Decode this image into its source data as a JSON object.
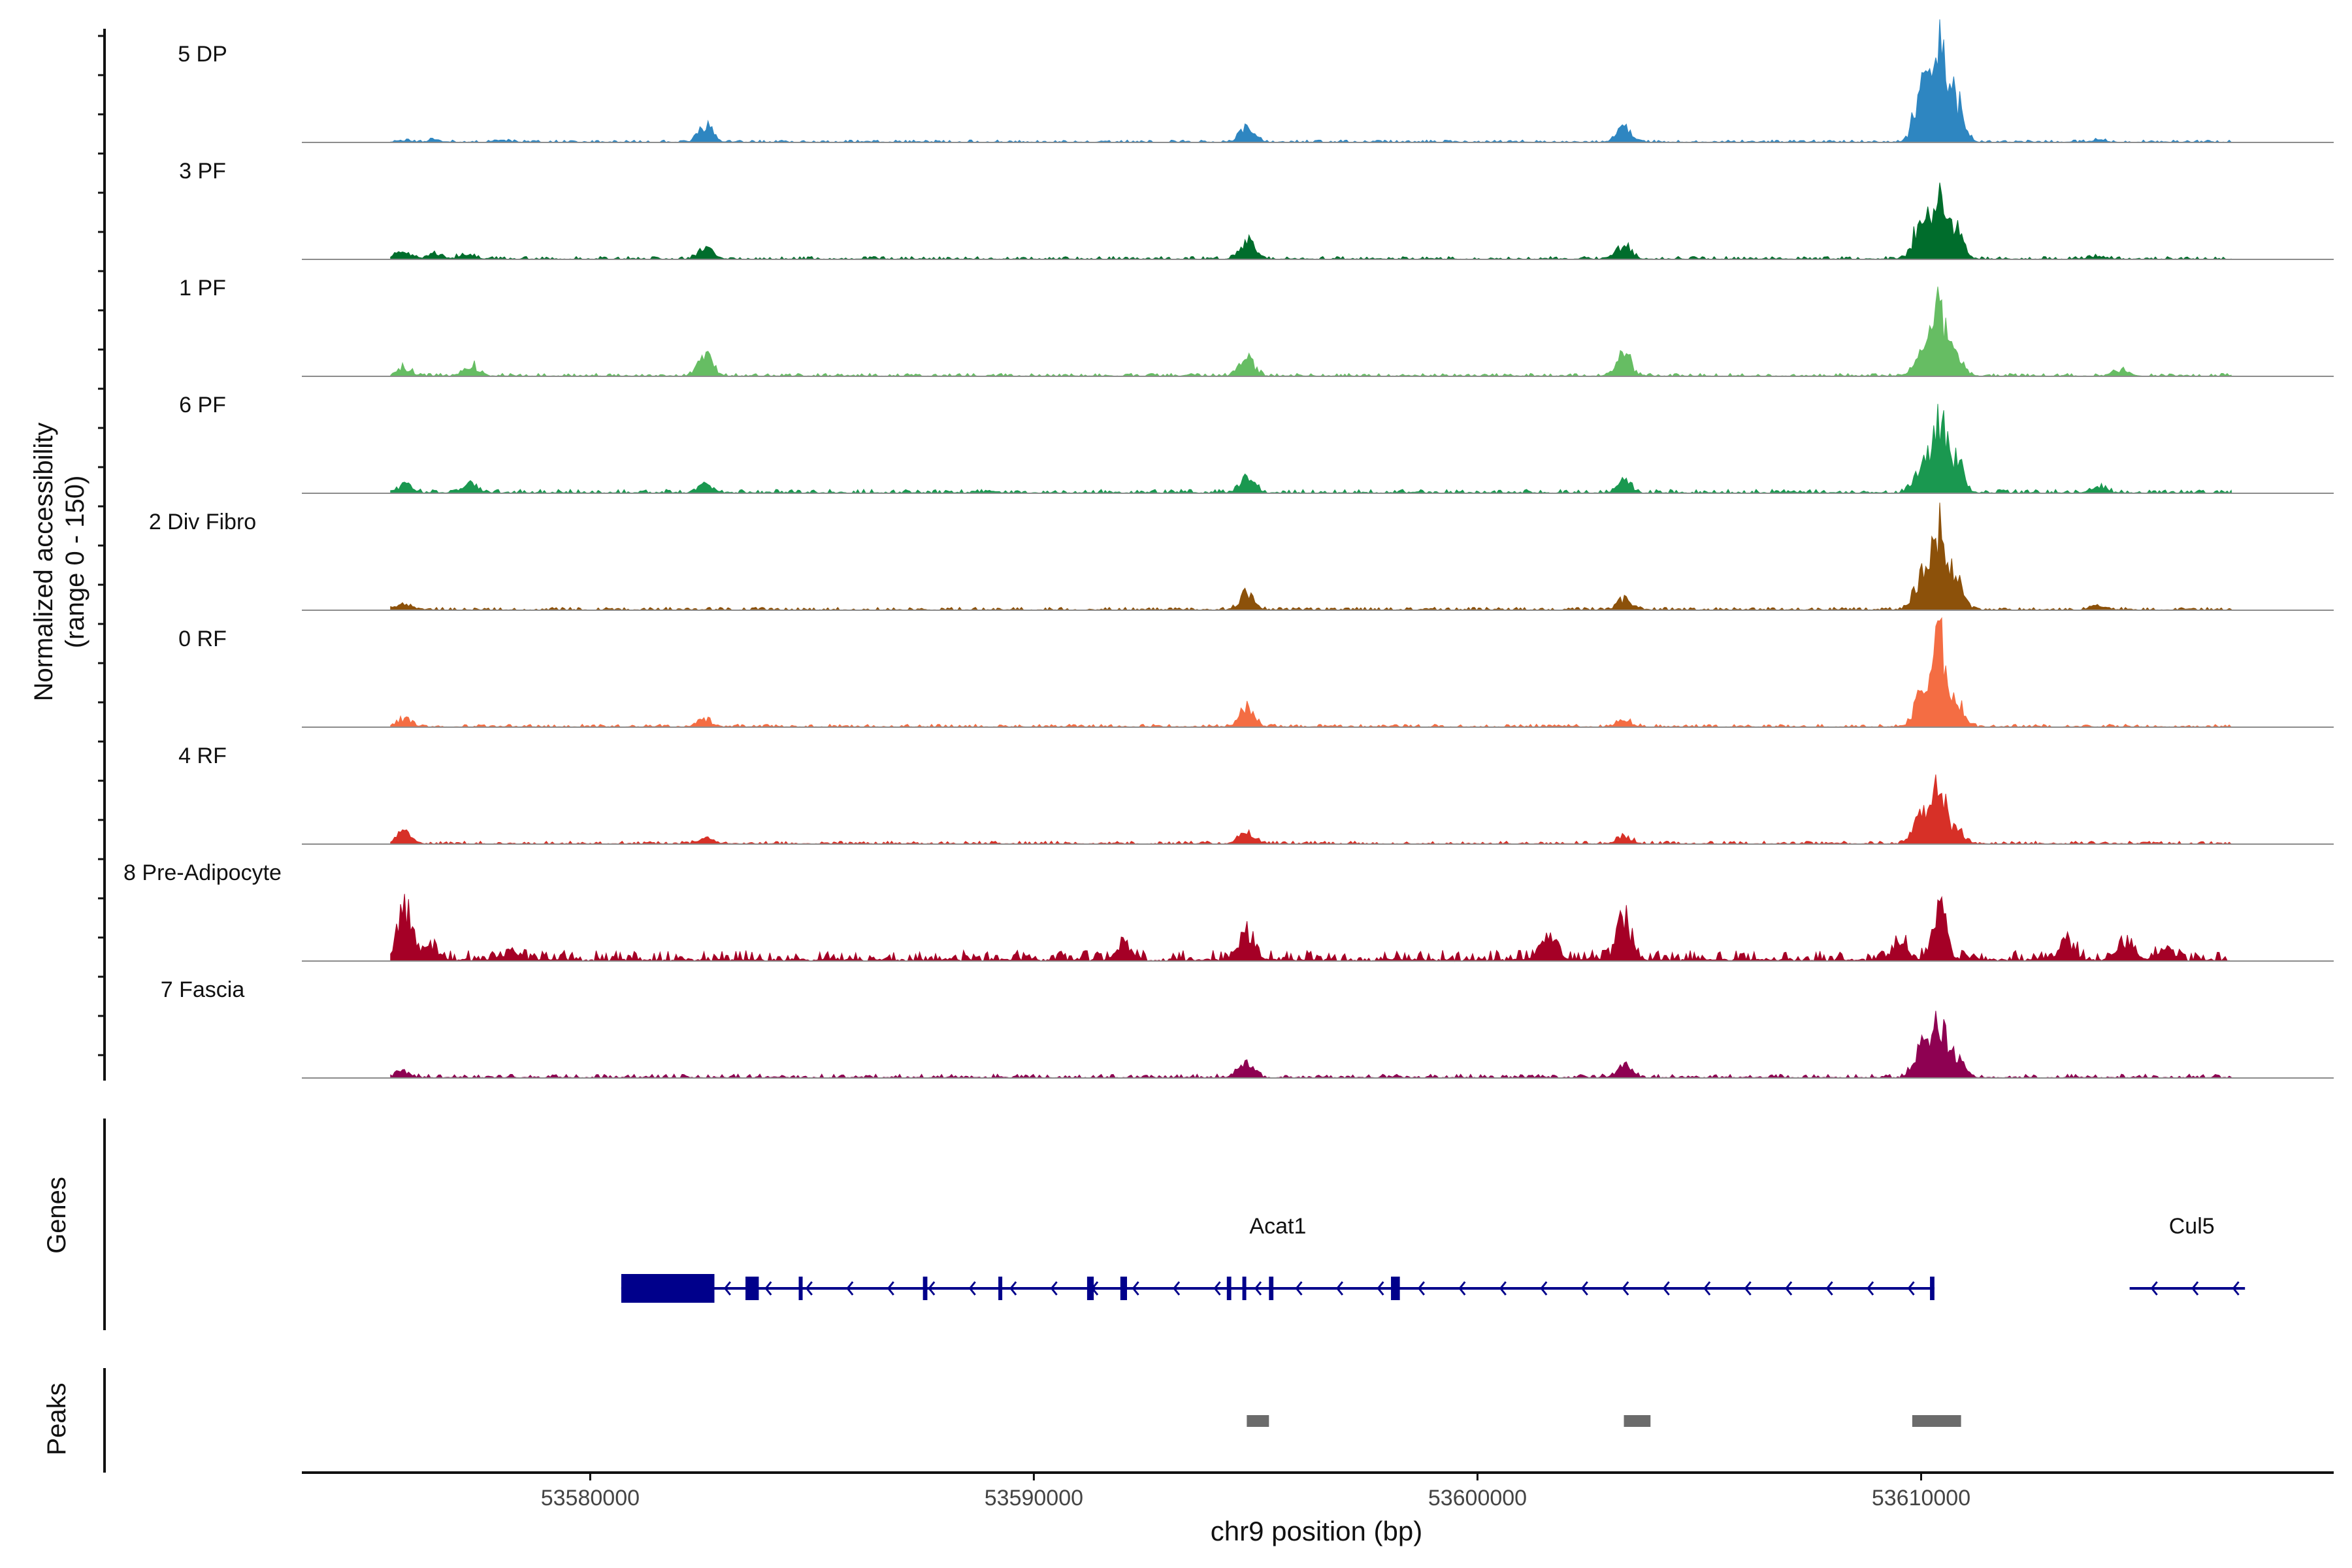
{
  "chart_data": {
    "type": "coverage-track",
    "y_axis_title": [
      "Normalized accessibility",
      "(range 0 - 150)"
    ],
    "y_range": [
      0,
      150
    ],
    "x_label": "chr9 position (bp)",
    "x_range": [
      53573500,
      53619300
    ],
    "x_ticks": [
      53580000,
      53590000,
      53600000,
      53610000
    ],
    "x_tick_labels": [
      "53580000",
      "53590000",
      "53600000",
      "53610000"
    ],
    "baseline_color": "#8c8c8c",
    "tracks": [
      {
        "name": "5 DP",
        "color": "#2e86c1",
        "noise": 2.5,
        "peaks": [
          [
            53575800,
            2
          ],
          [
            53576500,
            2
          ],
          [
            53578000,
            2
          ],
          [
            53582600,
            16
          ],
          [
            53594800,
            15
          ],
          [
            53603300,
            14
          ],
          [
            53610000,
            50
          ],
          [
            53610400,
            88
          ],
          [
            53610800,
            40
          ],
          [
            53614000,
            2
          ]
        ]
      },
      {
        "name": "3 PF",
        "color": "#006d2c",
        "noise": 3,
        "peaks": [
          [
            53575800,
            9
          ],
          [
            53576500,
            5
          ],
          [
            53577200,
            5
          ],
          [
            53582600,
            12
          ],
          [
            53594800,
            20
          ],
          [
            53603300,
            13
          ],
          [
            53610000,
            40
          ],
          [
            53610400,
            52
          ],
          [
            53610800,
            28
          ],
          [
            53614000,
            3
          ]
        ]
      },
      {
        "name": "1 PF",
        "color": "#66bd63",
        "noise": 3,
        "peaks": [
          [
            53575800,
            8
          ],
          [
            53577300,
            12
          ],
          [
            53582600,
            25
          ],
          [
            53594800,
            18
          ],
          [
            53603300,
            22
          ],
          [
            53610000,
            30
          ],
          [
            53610400,
            68
          ],
          [
            53610800,
            20
          ],
          [
            53614500,
            6
          ]
        ]
      },
      {
        "name": "6 PF",
        "color": "#1a9850",
        "noise": 4,
        "peaks": [
          [
            53575800,
            8
          ],
          [
            53577300,
            8
          ],
          [
            53582600,
            8
          ],
          [
            53594800,
            18
          ],
          [
            53603300,
            12
          ],
          [
            53610000,
            25
          ],
          [
            53610400,
            75
          ],
          [
            53610800,
            30
          ],
          [
            53614000,
            6
          ]
        ]
      },
      {
        "name": "2 Div Fibro",
        "color": "#8c510a",
        "noise": 3,
        "peaks": [
          [
            53575800,
            5
          ],
          [
            53594800,
            16
          ],
          [
            53603300,
            10
          ],
          [
            53610000,
            30
          ],
          [
            53610400,
            80
          ],
          [
            53610800,
            30
          ],
          [
            53614000,
            5
          ]
        ]
      },
      {
        "name": "0 RF",
        "color": "#f46d43",
        "noise": 3,
        "peaks": [
          [
            53575800,
            8
          ],
          [
            53582600,
            8
          ],
          [
            53594800,
            20
          ],
          [
            53603300,
            6
          ],
          [
            53610000,
            30
          ],
          [
            53610400,
            82
          ],
          [
            53610800,
            25
          ]
        ]
      },
      {
        "name": "4 RF",
        "color": "#d73027",
        "noise": 3,
        "peaks": [
          [
            53575800,
            12
          ],
          [
            53582600,
            5
          ],
          [
            53594800,
            14
          ],
          [
            53603300,
            8
          ],
          [
            53610000,
            28
          ],
          [
            53610400,
            50
          ],
          [
            53610800,
            14
          ]
        ]
      },
      {
        "name": "8 Pre-Adipocyte",
        "color": "#a50026",
        "noise": 11,
        "peaks": [
          [
            53575800,
            55
          ],
          [
            53576400,
            12
          ],
          [
            53578200,
            8
          ],
          [
            53592000,
            18
          ],
          [
            53594800,
            28
          ],
          [
            53601600,
            25
          ],
          [
            53603300,
            42
          ],
          [
            53609500,
            20
          ],
          [
            53610400,
            50
          ],
          [
            53613300,
            20
          ],
          [
            53614600,
            20
          ],
          [
            53615500,
            12
          ]
        ]
      },
      {
        "name": "7 Fascia",
        "color": "#8e0152",
        "noise": 4,
        "peaks": [
          [
            53575800,
            5
          ],
          [
            53594800,
            14
          ],
          [
            53603300,
            12
          ],
          [
            53610000,
            30
          ],
          [
            53610400,
            55
          ],
          [
            53610800,
            20
          ]
        ]
      }
    ],
    "genes_label": "Genes",
    "genes": [
      {
        "name": "Acat1",
        "label_x": 53595500,
        "start": 53580700,
        "end": 53610300,
        "strand": "-",
        "thick": [
          53580700,
          53582800
        ],
        "exons": [
          [
            53580700,
            53582800
          ],
          [
            53583500,
            53583800
          ],
          [
            53584700,
            53584750
          ],
          [
            53587500,
            53587600
          ],
          [
            53589200,
            53589250
          ],
          [
            53591200,
            53591350
          ],
          [
            53591950,
            53592100
          ],
          [
            53594350,
            53594450
          ],
          [
            53594700,
            53594750
          ],
          [
            53595300,
            53595400
          ],
          [
            53598050,
            53598250
          ],
          [
            53610200,
            53610300
          ]
        ]
      },
      {
        "name": "Cul5",
        "label_x": 53616100,
        "start": 53614700,
        "end": 53617300,
        "strand": "-",
        "thick": null,
        "exons": []
      }
    ],
    "peaks_label": "Peaks",
    "peak_regions": [
      [
        53594800,
        53595300
      ],
      [
        53603300,
        53603900
      ],
      [
        53609800,
        53610900
      ]
    ]
  }
}
